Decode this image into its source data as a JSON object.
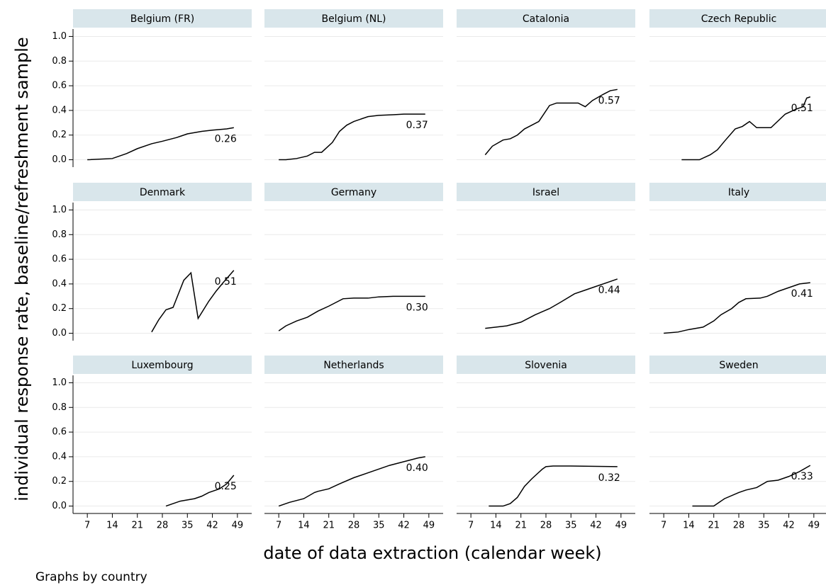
{
  "chart_data": {
    "type": "line",
    "x_label": "date of data extraction (calendar week)",
    "y_label": "individual response rate, baseline/refreshment sample",
    "note": "Graphs by country",
    "xlim": [
      3,
      53
    ],
    "xticks": [
      7,
      14,
      21,
      28,
      35,
      42,
      49
    ],
    "ylim": [
      -0.06,
      1.06
    ],
    "yticks": [
      {
        "value": 0,
        "label": "0.0"
      },
      0.2,
      0.4,
      0.6,
      0.8,
      {
        "value": 1,
        "label": "1.0"
      }
    ],
    "grid": true,
    "color": "#000000",
    "panels": [
      {
        "title": "Belgium (FR)",
        "x": [
          7,
          14,
          18,
          21,
          25,
          28,
          32,
          35,
          39,
          42,
          46,
          48
        ],
        "values": [
          0,
          0.01,
          0.05,
          0.09,
          0.13,
          0.15,
          0.18,
          0.21,
          0.23,
          0.24,
          0.25,
          0.26
        ],
        "end_label": "0.26"
      },
      {
        "title": "Belgium (NL)",
        "x": [
          7,
          9,
          12,
          15,
          17,
          19,
          22,
          24,
          26,
          28,
          32,
          35,
          39,
          42,
          48
        ],
        "values": [
          0,
          0,
          0.01,
          0.03,
          0.06,
          0.06,
          0.14,
          0.23,
          0.28,
          0.31,
          0.35,
          0.36,
          0.365,
          0.37,
          0.37
        ],
        "end_label": "0.37"
      },
      {
        "title": "Catalonia",
        "x": [
          11,
          13,
          16,
          18,
          20,
          22,
          24,
          26,
          29,
          31,
          34,
          37,
          39,
          41,
          44,
          46,
          48
        ],
        "values": [
          0.04,
          0.11,
          0.16,
          0.17,
          0.2,
          0.25,
          0.28,
          0.31,
          0.44,
          0.46,
          0.46,
          0.46,
          0.43,
          0.48,
          0.53,
          0.56,
          0.57
        ],
        "end_label": "0.57"
      },
      {
        "title": "Czech Republic",
        "x": [
          12,
          17,
          20,
          22,
          24,
          27,
          29,
          31,
          33,
          37,
          41,
          44,
          46,
          47,
          48
        ],
        "values": [
          0,
          0,
          0.04,
          0.08,
          0.15,
          0.25,
          0.27,
          0.31,
          0.26,
          0.26,
          0.37,
          0.41,
          0.43,
          0.5,
          0.51
        ],
        "end_label": "0.51"
      },
      {
        "title": "Denmark",
        "x": [
          25,
          27,
          29,
          30,
          31,
          34,
          36,
          38,
          41,
          43,
          45,
          48
        ],
        "values": [
          0.01,
          0.11,
          0.19,
          0.2,
          0.21,
          0.43,
          0.49,
          0.12,
          0.26,
          0.34,
          0.41,
          0.51
        ],
        "end_label": "0.51"
      },
      {
        "title": "Germany",
        "x": [
          7,
          9,
          12,
          15,
          18,
          21,
          25,
          28,
          32,
          35,
          39,
          42,
          48
        ],
        "values": [
          0.02,
          0.06,
          0.1,
          0.13,
          0.18,
          0.22,
          0.28,
          0.285,
          0.285,
          0.295,
          0.3,
          0.3,
          0.3
        ],
        "end_label": "0.30"
      },
      {
        "title": "Israel",
        "x": [
          11,
          17,
          21,
          25,
          29,
          32,
          36,
          39,
          42,
          45,
          48
        ],
        "values": [
          0.04,
          0.06,
          0.09,
          0.15,
          0.2,
          0.25,
          0.32,
          0.35,
          0.38,
          0.41,
          0.44
        ],
        "end_label": "0.44"
      },
      {
        "title": "Italy",
        "x": [
          7,
          11,
          14,
          18,
          21,
          23,
          26,
          28,
          30,
          34,
          36,
          39,
          42,
          45,
          48
        ],
        "values": [
          0,
          0.01,
          0.03,
          0.05,
          0.1,
          0.15,
          0.2,
          0.25,
          0.28,
          0.285,
          0.3,
          0.34,
          0.37,
          0.4,
          0.41
        ],
        "end_label": "0.41"
      },
      {
        "title": "Luxembourg",
        "x": [
          29,
          31,
          33,
          37,
          39,
          41,
          44,
          46,
          48
        ],
        "values": [
          0,
          0.02,
          0.04,
          0.06,
          0.08,
          0.11,
          0.14,
          0.18,
          0.25
        ],
        "end_label": "0.25"
      },
      {
        "title": "Netherlands",
        "x": [
          7,
          10,
          14,
          17,
          18,
          21,
          24,
          28,
          32,
          35,
          38,
          42,
          46,
          48
        ],
        "values": [
          0,
          0.03,
          0.06,
          0.11,
          0.12,
          0.14,
          0.18,
          0.23,
          0.27,
          0.3,
          0.33,
          0.36,
          0.39,
          0.4
        ],
        "end_label": "0.40"
      },
      {
        "title": "Slovenia",
        "x": [
          12,
          16,
          18,
          20,
          22,
          24,
          27,
          28,
          30,
          35,
          48
        ],
        "values": [
          0,
          0,
          0.02,
          0.07,
          0.16,
          0.22,
          0.3,
          0.32,
          0.325,
          0.325,
          0.32
        ],
        "end_label": "0.32"
      },
      {
        "title": "Sweden",
        "x": [
          15,
          18,
          21,
          24,
          28,
          30,
          33,
          36,
          39,
          42,
          45,
          48
        ],
        "values": [
          0,
          0,
          0,
          0.06,
          0.11,
          0.13,
          0.15,
          0.2,
          0.21,
          0.24,
          0.28,
          0.33
        ],
        "end_label": "0.33"
      }
    ]
  }
}
